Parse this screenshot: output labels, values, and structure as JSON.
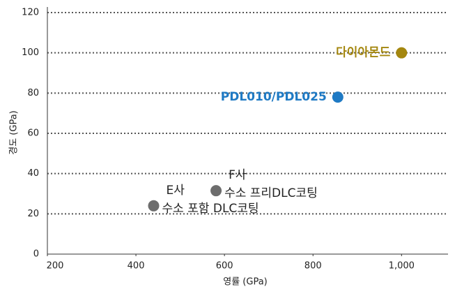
{
  "chart_data": {
    "type": "scatter",
    "xlabel": "영률 (GPa)",
    "ylabel": "경도 (GPa)",
    "xlim": [
      200,
      1105
    ],
    "xticks": [
      200,
      400,
      600,
      800,
      {
        "value": 1000,
        "label": "1,000"
      }
    ],
    "ylim": [
      0,
      120
    ],
    "yticks": [
      0,
      20,
      40,
      60,
      80,
      100,
      120
    ],
    "grid": true,
    "series": [
      {
        "name": "다이아몬드",
        "color": "#a4870f",
        "label_side": "left",
        "label_bold": true,
        "x": [
          1000
        ],
        "values": [
          100
        ]
      },
      {
        "name": "PDL010/PDL025",
        "color": "#1f7ac4",
        "label_side": "left",
        "label_bold": true,
        "x": [
          856
        ],
        "values": [
          78
        ]
      },
      {
        "name": "F사",
        "lines": [
          "F사",
          "수소 프리DLC코팅"
        ],
        "color": "#6d6d6d",
        "label_side": "right",
        "label_bold": false,
        "x": [
          581
        ],
        "values": [
          31.5
        ]
      },
      {
        "name": "E사",
        "lines": [
          "E사",
          "수소 포함 DLC코팅"
        ],
        "color": "#6d6d6d",
        "label_side": "right",
        "label_bold": false,
        "x": [
          440
        ],
        "values": [
          24
        ]
      }
    ]
  }
}
